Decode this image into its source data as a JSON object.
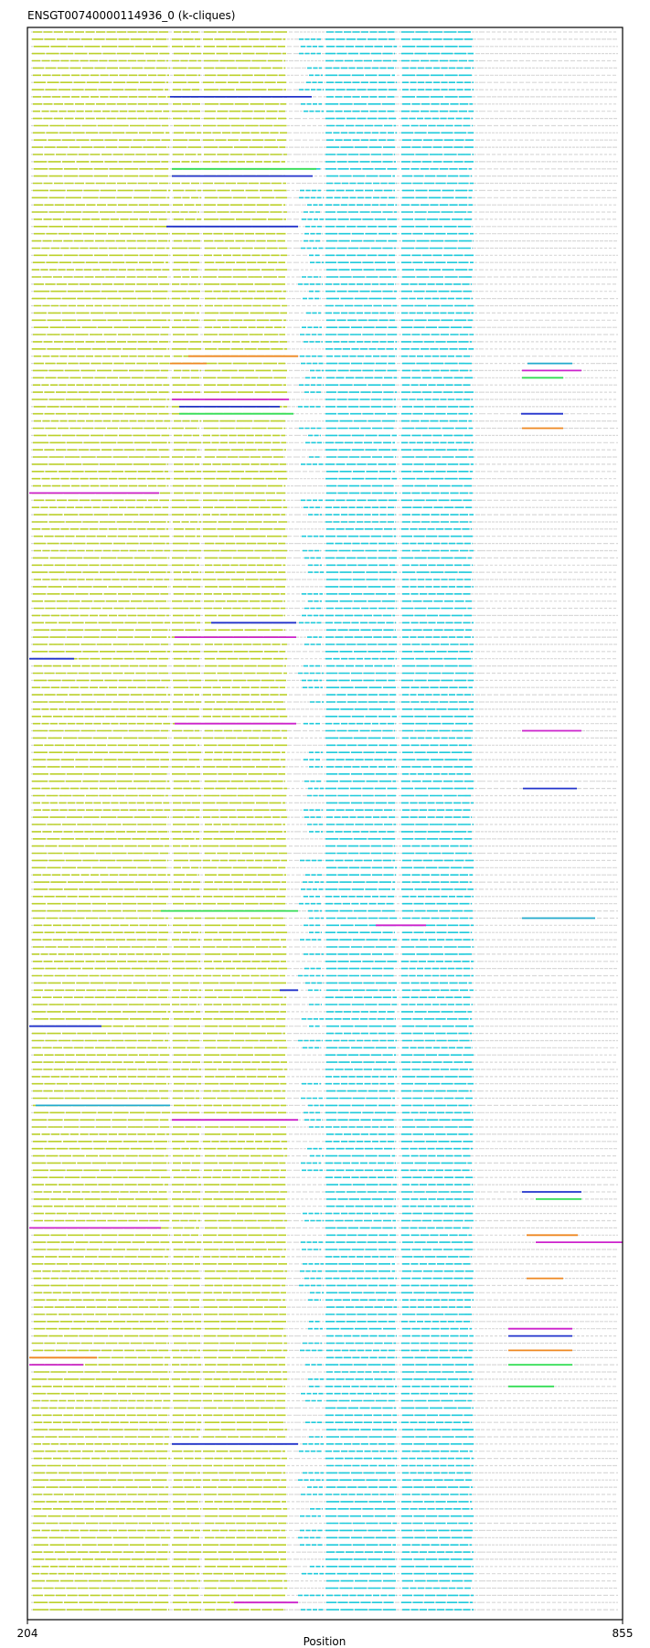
{
  "chart_data": {
    "type": "alignment-tracks",
    "title": "ENSGT00740000114936_0 (k-cliques)",
    "xlabel": "Position",
    "x_ticks": [
      "204",
      "855"
    ],
    "xlim": [
      204,
      855
    ],
    "row_count": 220,
    "grid": false,
    "legend": "none",
    "colors": {
      "frame": "#000000",
      "background_track": "#d9d9d9",
      "clique_yellow": "#bcd12b",
      "clique_cyan": "#1ecbdc",
      "highlight_blue": "#2233cc",
      "highlight_magenta": "#cc22cc",
      "highlight_green": "#33dd55",
      "highlight_orange": "#ee8822",
      "highlight_teal": "#22aacc"
    },
    "segments": {
      "background": {
        "color_key": "background_track",
        "x": [
          [
            208,
            498
          ],
          [
            498,
            700
          ],
          [
            700,
            820
          ],
          [
            820,
            850
          ]
        ]
      },
      "yellow": {
        "color_key": "clique_yellow",
        "x": [
          [
            209,
            360
          ],
          [
            362,
            394
          ],
          [
            396,
            488
          ]
        ]
      },
      "cyan": {
        "color_key": "clique_cyan",
        "x": [
          [
            530,
            608
          ],
          [
            613,
            692
          ]
        ]
      },
      "cyan_variable": {
        "color_key": "clique_cyan",
        "x": [
          [
            500,
            528
          ]
        ]
      }
    },
    "highlights": [
      {
        "row": 9,
        "x": [
          360,
          515
        ],
        "color_key": "highlight_blue"
      },
      {
        "row": 19,
        "x": [
          362,
          520
        ],
        "color_key": "highlight_green"
      },
      {
        "row": 20,
        "x": [
          362,
          516
        ],
        "color_key": "highlight_blue"
      },
      {
        "row": 27,
        "x": [
          356,
          500
        ],
        "color_key": "highlight_blue"
      },
      {
        "row": 45,
        "x": [
          380,
          500
        ],
        "color_key": "highlight_orange"
      },
      {
        "row": 46,
        "x": [
          360,
          400
        ],
        "color_key": "highlight_orange"
      },
      {
        "row": 46,
        "x": [
          751,
          800
        ],
        "color_key": "highlight_teal"
      },
      {
        "row": 47,
        "x": [
          745,
          810
        ],
        "color_key": "highlight_magenta"
      },
      {
        "row": 48,
        "x": [
          745,
          790
        ],
        "color_key": "highlight_green"
      },
      {
        "row": 51,
        "x": [
          362,
          490
        ],
        "color_key": "highlight_magenta"
      },
      {
        "row": 52,
        "x": [
          370,
          480
        ],
        "color_key": "highlight_blue"
      },
      {
        "row": 53,
        "x": [
          370,
          495
        ],
        "color_key": "highlight_green"
      },
      {
        "row": 53,
        "x": [
          744,
          790
        ],
        "color_key": "highlight_blue"
      },
      {
        "row": 55,
        "x": [
          745,
          790
        ],
        "color_key": "highlight_orange"
      },
      {
        "row": 64,
        "x": [
          206,
          348
        ],
        "color_key": "highlight_magenta"
      },
      {
        "row": 82,
        "x": [
          405,
          498
        ],
        "color_key": "highlight_blue"
      },
      {
        "row": 84,
        "x": [
          365,
          498
        ],
        "color_key": "highlight_magenta"
      },
      {
        "row": 87,
        "x": [
          206,
          255
        ],
        "color_key": "highlight_blue"
      },
      {
        "row": 96,
        "x": [
          365,
          498
        ],
        "color_key": "highlight_magenta"
      },
      {
        "row": 97,
        "x": [
          745,
          810
        ],
        "color_key": "highlight_magenta"
      },
      {
        "row": 105,
        "x": [
          746,
          805
        ],
        "color_key": "highlight_blue"
      },
      {
        "row": 122,
        "x": [
          350,
          500
        ],
        "color_key": "highlight_green"
      },
      {
        "row": 123,
        "x": [
          745,
          825
        ],
        "color_key": "highlight_teal"
      },
      {
        "row": 124,
        "x": [
          585,
          640
        ],
        "color_key": "highlight_magenta"
      },
      {
        "row": 133,
        "x": [
          480,
          500
        ],
        "color_key": "highlight_blue"
      },
      {
        "row": 138,
        "x": [
          206,
          285
        ],
        "color_key": "highlight_blue"
      },
      {
        "row": 149,
        "x": [
          213,
          360
        ],
        "color_key": "highlight_teal"
      },
      {
        "row": 151,
        "x": [
          362,
          500
        ],
        "color_key": "highlight_magenta"
      },
      {
        "row": 161,
        "x": [
          745,
          810
        ],
        "color_key": "highlight_blue"
      },
      {
        "row": 162,
        "x": [
          760,
          810
        ],
        "color_key": "highlight_green"
      },
      {
        "row": 166,
        "x": [
          206,
          350
        ],
        "color_key": "highlight_magenta"
      },
      {
        "row": 167,
        "x": [
          750,
          806
        ],
        "color_key": "highlight_orange"
      },
      {
        "row": 168,
        "x": [
          760,
          855
        ],
        "color_key": "highlight_magenta"
      },
      {
        "row": 173,
        "x": [
          750,
          790
        ],
        "color_key": "highlight_orange"
      },
      {
        "row": 180,
        "x": [
          730,
          800
        ],
        "color_key": "highlight_magenta"
      },
      {
        "row": 181,
        "x": [
          730,
          800
        ],
        "color_key": "highlight_blue"
      },
      {
        "row": 183,
        "x": [
          730,
          800
        ],
        "color_key": "highlight_orange"
      },
      {
        "row": 184,
        "x": [
          206,
          280
        ],
        "color_key": "highlight_orange"
      },
      {
        "row": 185,
        "x": [
          206,
          265
        ],
        "color_key": "highlight_magenta"
      },
      {
        "row": 185,
        "x": [
          730,
          800
        ],
        "color_key": "highlight_green"
      },
      {
        "row": 188,
        "x": [
          730,
          780
        ],
        "color_key": "highlight_green"
      },
      {
        "row": 196,
        "x": [
          362,
          500
        ],
        "color_key": "highlight_blue"
      },
      {
        "row": 218,
        "x": [
          430,
          500
        ],
        "color_key": "highlight_magenta"
      }
    ]
  }
}
